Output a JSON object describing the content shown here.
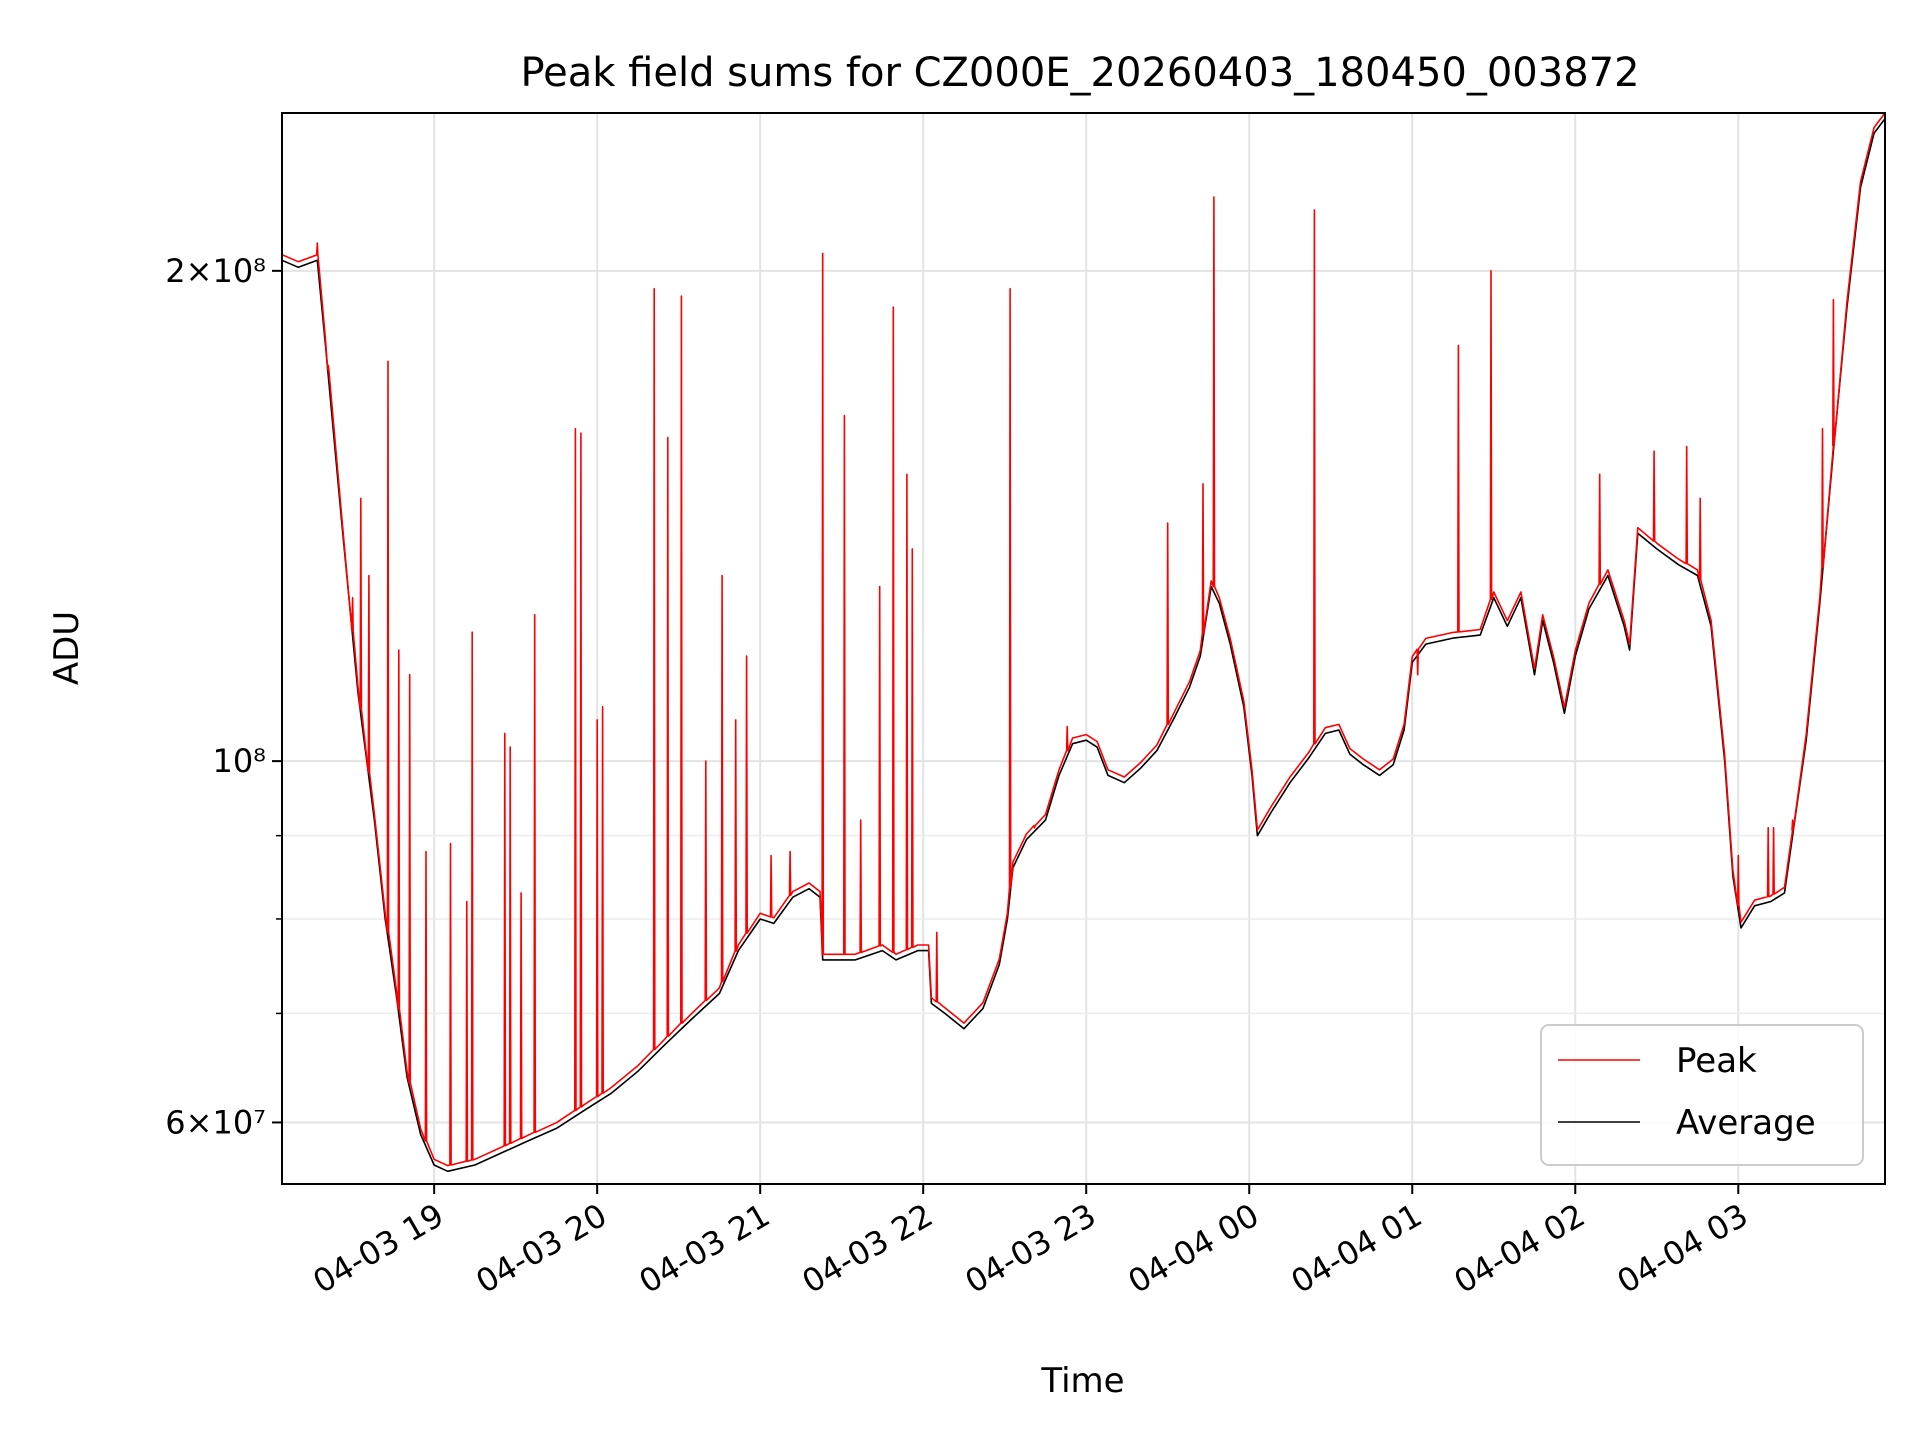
{
  "chart_data": {
    "type": "line",
    "title": "Peak field sums for CZ000E_20260403_180450_003872",
    "xlabel": "Time",
    "ylabel": "ADU",
    "yscale": "log",
    "grid": true,
    "legend_position": "lower-right",
    "xlim": [
      "2026-04-03T18:04",
      "2026-04-04T03:54"
    ],
    "ylim": [
      55000000,
      250000000
    ],
    "x_ticks": [
      {
        "at": "2026-04-03T19:00",
        "label": "04-03 19"
      },
      {
        "at": "2026-04-03T20:00",
        "label": "04-03 20"
      },
      {
        "at": "2026-04-03T21:00",
        "label": "04-03 21"
      },
      {
        "at": "2026-04-03T22:00",
        "label": "04-03 22"
      },
      {
        "at": "2026-04-03T23:00",
        "label": "04-03 23"
      },
      {
        "at": "2026-04-04T00:00",
        "label": "04-04 00"
      },
      {
        "at": "2026-04-04T01:00",
        "label": "04-04 01"
      },
      {
        "at": "2026-04-04T02:00",
        "label": "04-04 02"
      },
      {
        "at": "2026-04-04T03:00",
        "label": "04-04 03"
      }
    ],
    "y_ticks_major": [
      {
        "value": 60000000,
        "label": "6×10⁷"
      },
      {
        "value": 100000000,
        "label": "10⁸"
      },
      {
        "value": 200000000,
        "label": "2×10⁸"
      }
    ],
    "y_ticks_minor": [
      70000000,
      80000000,
      90000000
    ],
    "series": [
      {
        "name": "Average",
        "color": "#000000",
        "points": [
          [
            "2026-04-03T18:04",
            203000000
          ],
          [
            "2026-04-03T18:10",
            201000000
          ],
          [
            "2026-04-03T18:17",
            203000000
          ],
          [
            "2026-04-03T18:20",
            180000000
          ],
          [
            "2026-04-03T18:26",
            140000000
          ],
          [
            "2026-04-03T18:32",
            110000000
          ],
          [
            "2026-04-03T18:38",
            92000000
          ],
          [
            "2026-04-03T18:42",
            80000000
          ],
          [
            "2026-04-03T18:46",
            72000000
          ],
          [
            "2026-04-03T18:50",
            64000000
          ],
          [
            "2026-04-03T18:55",
            59000000
          ],
          [
            "2026-04-03T19:00",
            56500000
          ],
          [
            "2026-04-03T19:05",
            56000000
          ],
          [
            "2026-04-03T19:15",
            56500000
          ],
          [
            "2026-04-03T19:25",
            57500000
          ],
          [
            "2026-04-03T19:35",
            58500000
          ],
          [
            "2026-04-03T19:45",
            59500000
          ],
          [
            "2026-04-03T19:55",
            61000000
          ],
          [
            "2026-04-03T20:05",
            62500000
          ],
          [
            "2026-04-03T20:15",
            64500000
          ],
          [
            "2026-04-03T20:25",
            67000000
          ],
          [
            "2026-04-03T20:35",
            69500000
          ],
          [
            "2026-04-03T20:45",
            72000000
          ],
          [
            "2026-04-03T20:52",
            76500000
          ],
          [
            "2026-04-03T21:00",
            80000000
          ],
          [
            "2026-04-03T21:05",
            79500000
          ],
          [
            "2026-04-03T21:12",
            82500000
          ],
          [
            "2026-04-03T21:18",
            83500000
          ],
          [
            "2026-04-03T21:22",
            82500000
          ],
          [
            "2026-04-03T21:23",
            75500000
          ],
          [
            "2026-04-03T21:35",
            75500000
          ],
          [
            "2026-04-03T21:45",
            76500000
          ],
          [
            "2026-04-03T21:50",
            75500000
          ],
          [
            "2026-04-03T21:58",
            76500000
          ],
          [
            "2026-04-03T22:02",
            76500000
          ],
          [
            "2026-04-03T22:03",
            71000000
          ],
          [
            "2026-04-03T22:08",
            70000000
          ],
          [
            "2026-04-03T22:15",
            68500000
          ],
          [
            "2026-04-03T22:22",
            70500000
          ],
          [
            "2026-04-03T22:28",
            75000000
          ],
          [
            "2026-04-03T22:31",
            80000000
          ],
          [
            "2026-04-03T22:33",
            86000000
          ],
          [
            "2026-04-03T22:38",
            89500000
          ],
          [
            "2026-04-03T22:45",
            92000000
          ],
          [
            "2026-04-03T22:50",
            98000000
          ],
          [
            "2026-04-03T22:55",
            102500000
          ],
          [
            "2026-04-03T23:00",
            103000000
          ],
          [
            "2026-04-03T23:04",
            102000000
          ],
          [
            "2026-04-03T23:08",
            98000000
          ],
          [
            "2026-04-03T23:14",
            97000000
          ],
          [
            "2026-04-03T23:20",
            99000000
          ],
          [
            "2026-04-03T23:26",
            101500000
          ],
          [
            "2026-04-03T23:32",
            106000000
          ],
          [
            "2026-04-03T23:38",
            111000000
          ],
          [
            "2026-04-03T23:42",
            116000000
          ],
          [
            "2026-04-03T23:46",
            128000000
          ],
          [
            "2026-04-03T23:49",
            125000000
          ],
          [
            "2026-04-03T23:53",
            118000000
          ],
          [
            "2026-04-03T23:58",
            108000000
          ],
          [
            "2026-04-04T00:01",
            98000000
          ],
          [
            "2026-04-04T00:03",
            90000000
          ],
          [
            "2026-04-04T00:08",
            93000000
          ],
          [
            "2026-04-04T00:15",
            97000000
          ],
          [
            "2026-04-04T00:22",
            100500000
          ],
          [
            "2026-04-04T00:28",
            104000000
          ],
          [
            "2026-04-04T00:33",
            104500000
          ],
          [
            "2026-04-04T00:37",
            101000000
          ],
          [
            "2026-04-04T00:42",
            99500000
          ],
          [
            "2026-04-04T00:48",
            98000000
          ],
          [
            "2026-04-04T00:53",
            99500000
          ],
          [
            "2026-04-04T00:57",
            104500000
          ],
          [
            "2026-04-04T01:00",
            115000000
          ],
          [
            "2026-04-04T01:05",
            118000000
          ],
          [
            "2026-04-04T01:15",
            119000000
          ],
          [
            "2026-04-04T01:25",
            119500000
          ],
          [
            "2026-04-04T01:30",
            126000000
          ],
          [
            "2026-04-04T01:35",
            121000000
          ],
          [
            "2026-04-04T01:40",
            126000000
          ],
          [
            "2026-04-04T01:45",
            113000000
          ],
          [
            "2026-04-04T01:48",
            122000000
          ],
          [
            "2026-04-04T01:52",
            115000000
          ],
          [
            "2026-04-04T01:56",
            107000000
          ],
          [
            "2026-04-04T02:00",
            116000000
          ],
          [
            "2026-04-04T02:05",
            124000000
          ],
          [
            "2026-04-04T02:12",
            130000000
          ],
          [
            "2026-04-04T02:18",
            121000000
          ],
          [
            "2026-04-04T02:20",
            117000000
          ],
          [
            "2026-04-04T02:23",
            138000000
          ],
          [
            "2026-04-04T02:30",
            135000000
          ],
          [
            "2026-04-04T02:38",
            132000000
          ],
          [
            "2026-04-04T02:45",
            130000000
          ],
          [
            "2026-04-04T02:50",
            121000000
          ],
          [
            "2026-04-04T02:55",
            100000000
          ],
          [
            "2026-04-04T02:58",
            85000000
          ],
          [
            "2026-04-04T03:01",
            79000000
          ],
          [
            "2026-04-04T03:06",
            81500000
          ],
          [
            "2026-04-04T03:12",
            82000000
          ],
          [
            "2026-04-04T03:17",
            83000000
          ],
          [
            "2026-04-04T03:20",
            90000000
          ],
          [
            "2026-04-04T03:25",
            103000000
          ],
          [
            "2026-04-04T03:30",
            125000000
          ],
          [
            "2026-04-04T03:35",
            155000000
          ],
          [
            "2026-04-04T03:40",
            190000000
          ],
          [
            "2026-04-04T03:45",
            225000000
          ],
          [
            "2026-04-04T03:50",
            243000000
          ],
          [
            "2026-04-04T03:54",
            248000000
          ]
        ]
      },
      {
        "name": "Peak",
        "color": "#ff0000",
        "spikes": [
          [
            "2026-04-03T18:17",
            208000000
          ],
          [
            "2026-04-03T18:21",
            175000000
          ],
          [
            "2026-04-03T18:30",
            126000000
          ],
          [
            "2026-04-03T18:33",
            145000000
          ],
          [
            "2026-04-03T18:36",
            130000000
          ],
          [
            "2026-04-03T18:43",
            176000000
          ],
          [
            "2026-04-03T18:47",
            117000000
          ],
          [
            "2026-04-03T18:51",
            113000000
          ],
          [
            "2026-04-03T18:57",
            88000000
          ],
          [
            "2026-04-03T19:06",
            89000000
          ],
          [
            "2026-04-03T19:12",
            82000000
          ],
          [
            "2026-04-03T19:14",
            120000000
          ],
          [
            "2026-04-03T19:26",
            104000000
          ],
          [
            "2026-04-03T19:28",
            102000000
          ],
          [
            "2026-04-03T19:32",
            83000000
          ],
          [
            "2026-04-03T19:37",
            123000000
          ],
          [
            "2026-04-03T19:52",
            160000000
          ],
          [
            "2026-04-03T19:54",
            159000000
          ],
          [
            "2026-04-03T20:00",
            106000000
          ],
          [
            "2026-04-03T20:02",
            108000000
          ],
          [
            "2026-04-03T20:21",
            195000000
          ],
          [
            "2026-04-03T20:26",
            158000000
          ],
          [
            "2026-04-03T20:31",
            193000000
          ],
          [
            "2026-04-03T20:40",
            100000000
          ],
          [
            "2026-04-03T20:46",
            130000000
          ],
          [
            "2026-04-03T20:51",
            106000000
          ],
          [
            "2026-04-03T20:55",
            116000000
          ],
          [
            "2026-04-03T21:04",
            87500000
          ],
          [
            "2026-04-03T21:11",
            88000000
          ],
          [
            "2026-04-03T21:23",
            205000000
          ],
          [
            "2026-04-03T21:31",
            163000000
          ],
          [
            "2026-04-03T21:37",
            92000000
          ],
          [
            "2026-04-03T21:44",
            128000000
          ],
          [
            "2026-04-03T21:49",
            190000000
          ],
          [
            "2026-04-03T21:54",
            150000000
          ],
          [
            "2026-04-03T21:56",
            135000000
          ],
          [
            "2026-04-03T22:05",
            78500000
          ],
          [
            "2026-04-03T22:32",
            195000000
          ],
          [
            "2026-04-03T22:41",
            91000000
          ],
          [
            "2026-04-03T22:53",
            105000000
          ],
          [
            "2026-04-03T23:30",
            140000000
          ],
          [
            "2026-04-03T23:43",
            148000000
          ],
          [
            "2026-04-03T23:47",
            222000000
          ],
          [
            "2026-04-04T00:24",
            218000000
          ],
          [
            "2026-04-04T01:02",
            113000000
          ],
          [
            "2026-04-04T01:17",
            180000000
          ],
          [
            "2026-04-04T01:29",
            200000000
          ],
          [
            "2026-04-04T02:09",
            150000000
          ],
          [
            "2026-04-04T02:29",
            155000000
          ],
          [
            "2026-04-04T02:41",
            156000000
          ],
          [
            "2026-04-04T02:46",
            145000000
          ],
          [
            "2026-04-04T03:00",
            87500000
          ],
          [
            "2026-04-04T03:11",
            91000000
          ],
          [
            "2026-04-04T03:13",
            91000000
          ],
          [
            "2026-04-04T03:20",
            92000000
          ],
          [
            "2026-04-04T03:31",
            160000000
          ],
          [
            "2026-04-04T03:35",
            192000000
          ]
        ]
      }
    ]
  }
}
